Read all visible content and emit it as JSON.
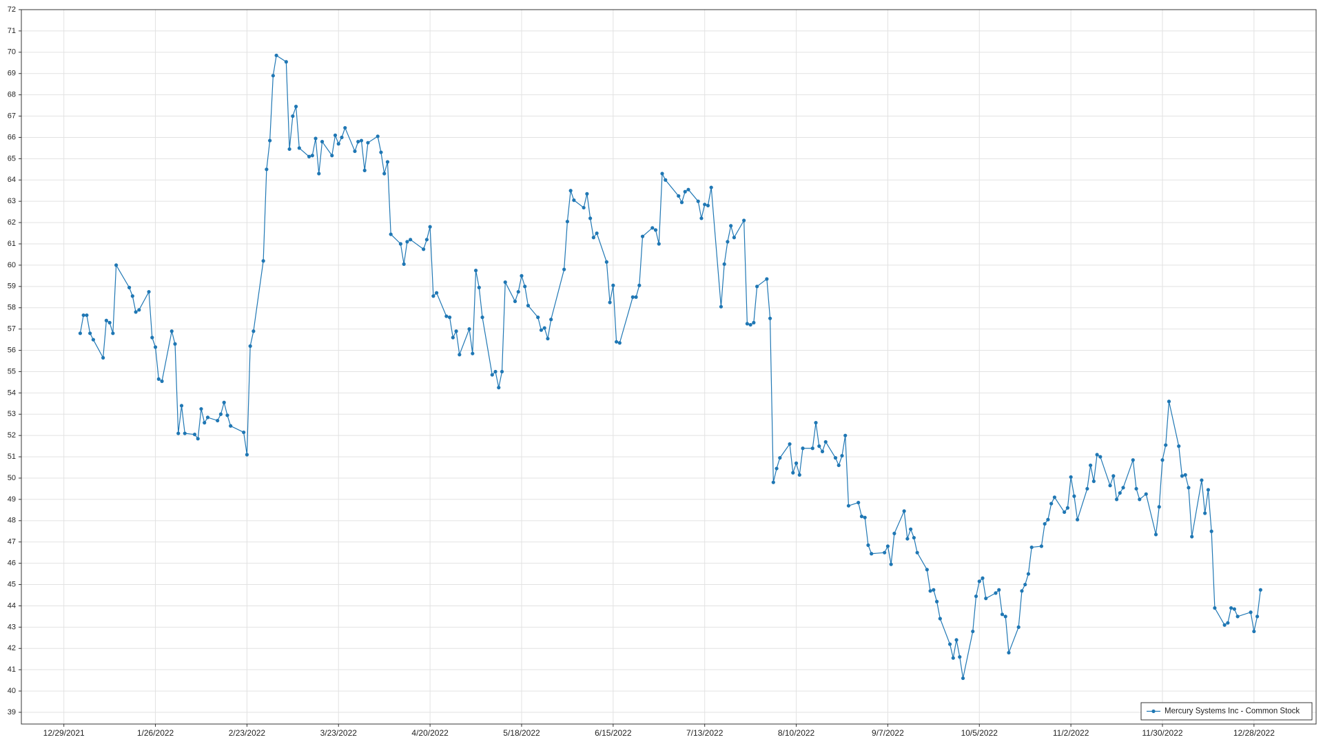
{
  "chart_data": {
    "type": "line",
    "series": [
      {
        "name": "Mercury Systems Inc - Common Stock",
        "color": "#1f77b4",
        "x": [
          "1/3/2022",
          "1/4/2022",
          "1/5/2022",
          "1/6/2022",
          "1/7/2022",
          "1/10/2022",
          "1/11/2022",
          "1/12/2022",
          "1/13/2022",
          "1/14/2022",
          "1/18/2022",
          "1/19/2022",
          "1/20/2022",
          "1/21/2022",
          "1/24/2022",
          "1/25/2022",
          "1/26/2022",
          "1/27/2022",
          "1/28/2022",
          "1/31/2022",
          "2/1/2022",
          "2/2/2022",
          "2/3/2022",
          "2/4/2022",
          "2/7/2022",
          "2/8/2022",
          "2/9/2022",
          "2/10/2022",
          "2/11/2022",
          "2/14/2022",
          "2/15/2022",
          "2/16/2022",
          "2/17/2022",
          "2/18/2022",
          "2/22/2022",
          "2/23/2022",
          "2/24/2022",
          "2/25/2022",
          "2/28/2022",
          "3/1/2022",
          "3/2/2022",
          "3/3/2022",
          "3/4/2022",
          "3/7/2022",
          "3/8/2022",
          "3/9/2022",
          "3/10/2022",
          "3/11/2022",
          "3/14/2022",
          "3/15/2022",
          "3/16/2022",
          "3/17/2022",
          "3/18/2022",
          "3/21/2022",
          "3/22/2022",
          "3/23/2022",
          "3/24/2022",
          "3/25/2022",
          "3/28/2022",
          "3/29/2022",
          "3/30/2022",
          "3/31/2022",
          "4/1/2022",
          "4/4/2022",
          "4/5/2022",
          "4/6/2022",
          "4/7/2022",
          "4/8/2022",
          "4/11/2022",
          "4/12/2022",
          "4/13/2022",
          "4/14/2022",
          "4/18/2022",
          "4/19/2022",
          "4/20/2022",
          "4/21/2022",
          "4/22/2022",
          "4/25/2022",
          "4/26/2022",
          "4/27/2022",
          "4/28/2022",
          "4/29/2022",
          "5/2/2022",
          "5/3/2022",
          "5/4/2022",
          "5/5/2022",
          "5/6/2022",
          "5/9/2022",
          "5/10/2022",
          "5/11/2022",
          "5/12/2022",
          "5/13/2022",
          "5/16/2022",
          "5/17/2022",
          "5/18/2022",
          "5/19/2022",
          "5/20/2022",
          "5/23/2022",
          "5/24/2022",
          "5/25/2022",
          "5/26/2022",
          "5/27/2022",
          "5/31/2022",
          "6/1/2022",
          "6/2/2022",
          "6/3/2022",
          "6/6/2022",
          "6/7/2022",
          "6/8/2022",
          "6/9/2022",
          "6/10/2022",
          "6/13/2022",
          "6/14/2022",
          "6/15/2022",
          "6/16/2022",
          "6/17/2022",
          "6/21/2022",
          "6/22/2022",
          "6/23/2022",
          "6/24/2022",
          "6/27/2022",
          "6/28/2022",
          "6/29/2022",
          "6/30/2022",
          "7/1/2022",
          "7/5/2022",
          "7/6/2022",
          "7/7/2022",
          "7/8/2022",
          "7/11/2022",
          "7/12/2022",
          "7/13/2022",
          "7/14/2022",
          "7/15/2022",
          "7/18/2022",
          "7/19/2022",
          "7/20/2022",
          "7/21/2022",
          "7/22/2022",
          "7/25/2022",
          "7/26/2022",
          "7/27/2022",
          "7/28/2022",
          "7/29/2022",
          "8/1/2022",
          "8/2/2022",
          "8/3/2022",
          "8/4/2022",
          "8/5/2022",
          "8/8/2022",
          "8/9/2022",
          "8/10/2022",
          "8/11/2022",
          "8/12/2022",
          "8/15/2022",
          "8/16/2022",
          "8/17/2022",
          "8/18/2022",
          "8/19/2022",
          "8/22/2022",
          "8/23/2022",
          "8/24/2022",
          "8/25/2022",
          "8/26/2022",
          "8/29/2022",
          "8/30/2022",
          "8/31/2022",
          "9/1/2022",
          "9/2/2022",
          "9/6/2022",
          "9/7/2022",
          "9/8/2022",
          "9/9/2022",
          "9/12/2022",
          "9/13/2022",
          "9/14/2022",
          "9/15/2022",
          "9/16/2022",
          "9/19/2022",
          "9/20/2022",
          "9/21/2022",
          "9/22/2022",
          "9/23/2022",
          "9/26/2022",
          "9/27/2022",
          "9/28/2022",
          "9/29/2022",
          "9/30/2022",
          "10/3/2022",
          "10/4/2022",
          "10/5/2022",
          "10/6/2022",
          "10/7/2022",
          "10/10/2022",
          "10/11/2022",
          "10/12/2022",
          "10/13/2022",
          "10/14/2022",
          "10/17/2022",
          "10/18/2022",
          "10/19/2022",
          "10/20/2022",
          "10/21/2022",
          "10/24/2022",
          "10/25/2022",
          "10/26/2022",
          "10/27/2022",
          "10/28/2022",
          "10/31/2022",
          "11/1/2022",
          "11/2/2022",
          "11/3/2022",
          "11/4/2022",
          "11/7/2022",
          "11/8/2022",
          "11/9/2022",
          "11/10/2022",
          "11/11/2022",
          "11/14/2022",
          "11/15/2022",
          "11/16/2022",
          "11/17/2022",
          "11/18/2022",
          "11/21/2022",
          "11/22/2022",
          "11/23/2022",
          "11/25/2022",
          "11/28/2022",
          "11/29/2022",
          "11/30/2022",
          "12/1/2022",
          "12/2/2022",
          "12/5/2022",
          "12/6/2022",
          "12/7/2022",
          "12/8/2022",
          "12/9/2022",
          "12/12/2022",
          "12/13/2022",
          "12/14/2022",
          "12/15/2022",
          "12/16/2022",
          "12/19/2022",
          "12/20/2022",
          "12/21/2022",
          "12/22/2022",
          "12/23/2022",
          "12/27/2022",
          "12/28/2022",
          "12/29/2022",
          "12/30/2022"
        ],
        "values": [
          56.8,
          57.65,
          57.65,
          56.8,
          56.5,
          55.65,
          57.4,
          57.3,
          56.8,
          60,
          58.95,
          58.55,
          57.8,
          57.9,
          58.75,
          56.6,
          56.15,
          54.65,
          54.55,
          56.9,
          56.3,
          52.1,
          53.4,
          52.1,
          52.05,
          51.85,
          53.25,
          52.6,
          52.85,
          52.7,
          53,
          53.55,
          52.95,
          52.45,
          52.15,
          51.1,
          56.2,
          56.9,
          60.2,
          64.5,
          65.85,
          68.9,
          69.85,
          69.55,
          65.45,
          67,
          67.45,
          65.5,
          65.1,
          65.15,
          65.95,
          64.3,
          65.8,
          65.15,
          66.1,
          65.7,
          66,
          66.45,
          65.35,
          65.8,
          65.85,
          64.45,
          65.75,
          66.05,
          65.3,
          64.3,
          64.85,
          61.45,
          61,
          60.05,
          61.1,
          61.2,
          60.75,
          61.2,
          61.8,
          58.55,
          58.7,
          57.6,
          57.55,
          56.6,
          56.9,
          55.8,
          57,
          55.85,
          59.75,
          58.95,
          57.55,
          54.85,
          55,
          54.25,
          55,
          59.2,
          58.3,
          58.75,
          59.5,
          59,
          58.1,
          57.55,
          56.95,
          57.05,
          56.55,
          57.45,
          59.8,
          62.05,
          63.5,
          63.05,
          62.7,
          63.35,
          62.2,
          61.3,
          61.5,
          60.15,
          58.25,
          59.05,
          56.4,
          56.35,
          58.5,
          58.5,
          59.05,
          61.35,
          61.75,
          61.65,
          61,
          64.3,
          64,
          63.25,
          62.95,
          63.45,
          63.55,
          63,
          62.2,
          62.85,
          62.8,
          63.65,
          58.05,
          60.05,
          61.1,
          61.85,
          61.3,
          62.1,
          57.25,
          57.2,
          57.3,
          59,
          59.35,
          57.5,
          49.8,
          50.45,
          50.95,
          51.6,
          50.25,
          50.7,
          50.15,
          51.4,
          51.4,
          52.6,
          51.5,
          51.25,
          51.7,
          50.95,
          50.6,
          51.05,
          52,
          48.7,
          48.85,
          48.2,
          48.15,
          46.85,
          46.45,
          46.5,
          46.8,
          45.95,
          47.4,
          48.45,
          47.15,
          47.6,
          47.2,
          46.5,
          45.7,
          44.7,
          44.75,
          44.2,
          43.4,
          42.2,
          41.55,
          42.4,
          41.6,
          40.6,
          42.8,
          44.45,
          45.15,
          45.3,
          44.35,
          44.6,
          44.75,
          43.6,
          43.5,
          41.8,
          43,
          44.7,
          45,
          45.5,
          46.75,
          46.8,
          47.85,
          48.05,
          48.8,
          49.1,
          48.4,
          48.6,
          50.05,
          49.15,
          48.05,
          49.5,
          50.6,
          49.85,
          51.1,
          51,
          49.65,
          50.1,
          49,
          49.3,
          49.55,
          50.85,
          49.5,
          49,
          49.25,
          47.35,
          48.65,
          50.85,
          51.55,
          53.6,
          51.5,
          50.1,
          50.15,
          49.55,
          47.25,
          49.9,
          48.35,
          49.45,
          47.5,
          43.9,
          43.1,
          43.2,
          43.9,
          43.85,
          43.5,
          43.7,
          42.8,
          43.5,
          44.75
        ]
      }
    ],
    "xlim": [
      "12/16/2021",
      "1/16/2023"
    ],
    "xticks": [
      "12/29/2021",
      "1/26/2022",
      "2/23/2022",
      "3/23/2022",
      "4/20/2022",
      "5/18/2022",
      "6/15/2022",
      "7/13/2022",
      "8/10/2022",
      "9/7/2022",
      "10/5/2022",
      "11/2/2022",
      "11/30/2022",
      "12/28/2022"
    ],
    "ylim": [
      38.45,
      72
    ],
    "yticks": [
      39,
      40,
      41,
      42,
      43,
      44,
      45,
      46,
      47,
      48,
      49,
      50,
      51,
      52,
      53,
      54,
      55,
      56,
      57,
      58,
      59,
      60,
      61,
      62,
      63,
      64,
      65,
      66,
      67,
      68,
      69,
      70,
      71,
      72
    ],
    "grid": true,
    "legend": "lower right"
  }
}
